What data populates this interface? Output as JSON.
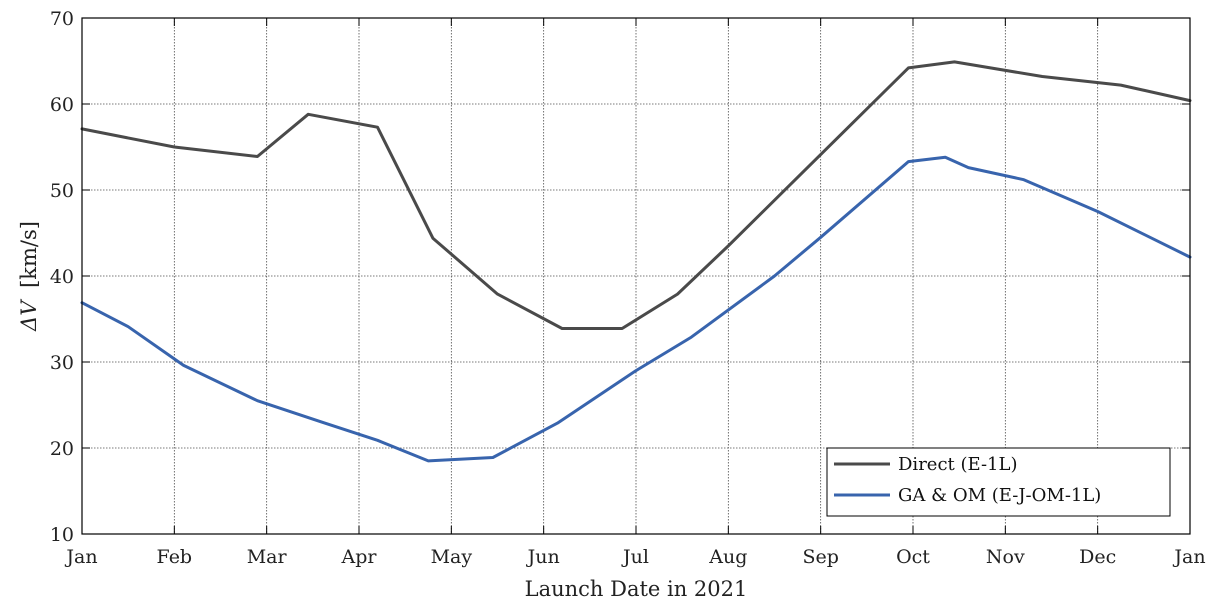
{
  "chart_data": {
    "type": "line",
    "title": "",
    "xlabel": "Launch Date in 2021",
    "ylabel_symbol": "ΔV",
    "ylabel_unit": "[km/s]",
    "ylim": [
      10,
      70
    ],
    "yticks": [
      10,
      20,
      30,
      40,
      50,
      60,
      70
    ],
    "xlim_months": [
      0,
      12
    ],
    "xticks": [
      "Jan",
      "Feb",
      "Mar",
      "Apr",
      "May",
      "Jun",
      "Jul",
      "Aug",
      "Sep",
      "Oct",
      "Nov",
      "Dec",
      "Jan"
    ],
    "grid": true,
    "legend_position": "bottom-right",
    "series": [
      {
        "name": "Direct (E-1L)",
        "color": "#4a4a4a",
        "points": [
          [
            0.0,
            57.1
          ],
          [
            1.0,
            55.0
          ],
          [
            1.9,
            53.9
          ],
          [
            2.45,
            58.8
          ],
          [
            3.2,
            57.3
          ],
          [
            3.8,
            44.4
          ],
          [
            4.5,
            37.9
          ],
          [
            5.2,
            33.9
          ],
          [
            5.85,
            33.9
          ],
          [
            6.45,
            37.9
          ],
          [
            7.0,
            43.5
          ],
          [
            7.8,
            52.0
          ],
          [
            8.95,
            64.2
          ],
          [
            9.45,
            64.9
          ],
          [
            10.4,
            63.2
          ],
          [
            11.25,
            62.2
          ],
          [
            12.0,
            60.4
          ]
        ]
      },
      {
        "name": "GA & OM (E-J-OM-1L)",
        "color": "#3864ad",
        "points": [
          [
            0.0,
            36.9
          ],
          [
            0.5,
            34.1
          ],
          [
            1.1,
            29.6
          ],
          [
            1.9,
            25.5
          ],
          [
            2.6,
            23.0
          ],
          [
            3.2,
            20.9
          ],
          [
            3.75,
            18.5
          ],
          [
            4.45,
            18.9
          ],
          [
            5.15,
            22.9
          ],
          [
            6.0,
            29.0
          ],
          [
            6.6,
            32.9
          ],
          [
            7.5,
            40.0
          ],
          [
            8.0,
            44.5
          ],
          [
            8.95,
            53.3
          ],
          [
            9.35,
            53.8
          ],
          [
            9.6,
            52.6
          ],
          [
            10.2,
            51.2
          ],
          [
            11.0,
            47.5
          ],
          [
            12.0,
            42.2
          ]
        ]
      }
    ]
  }
}
